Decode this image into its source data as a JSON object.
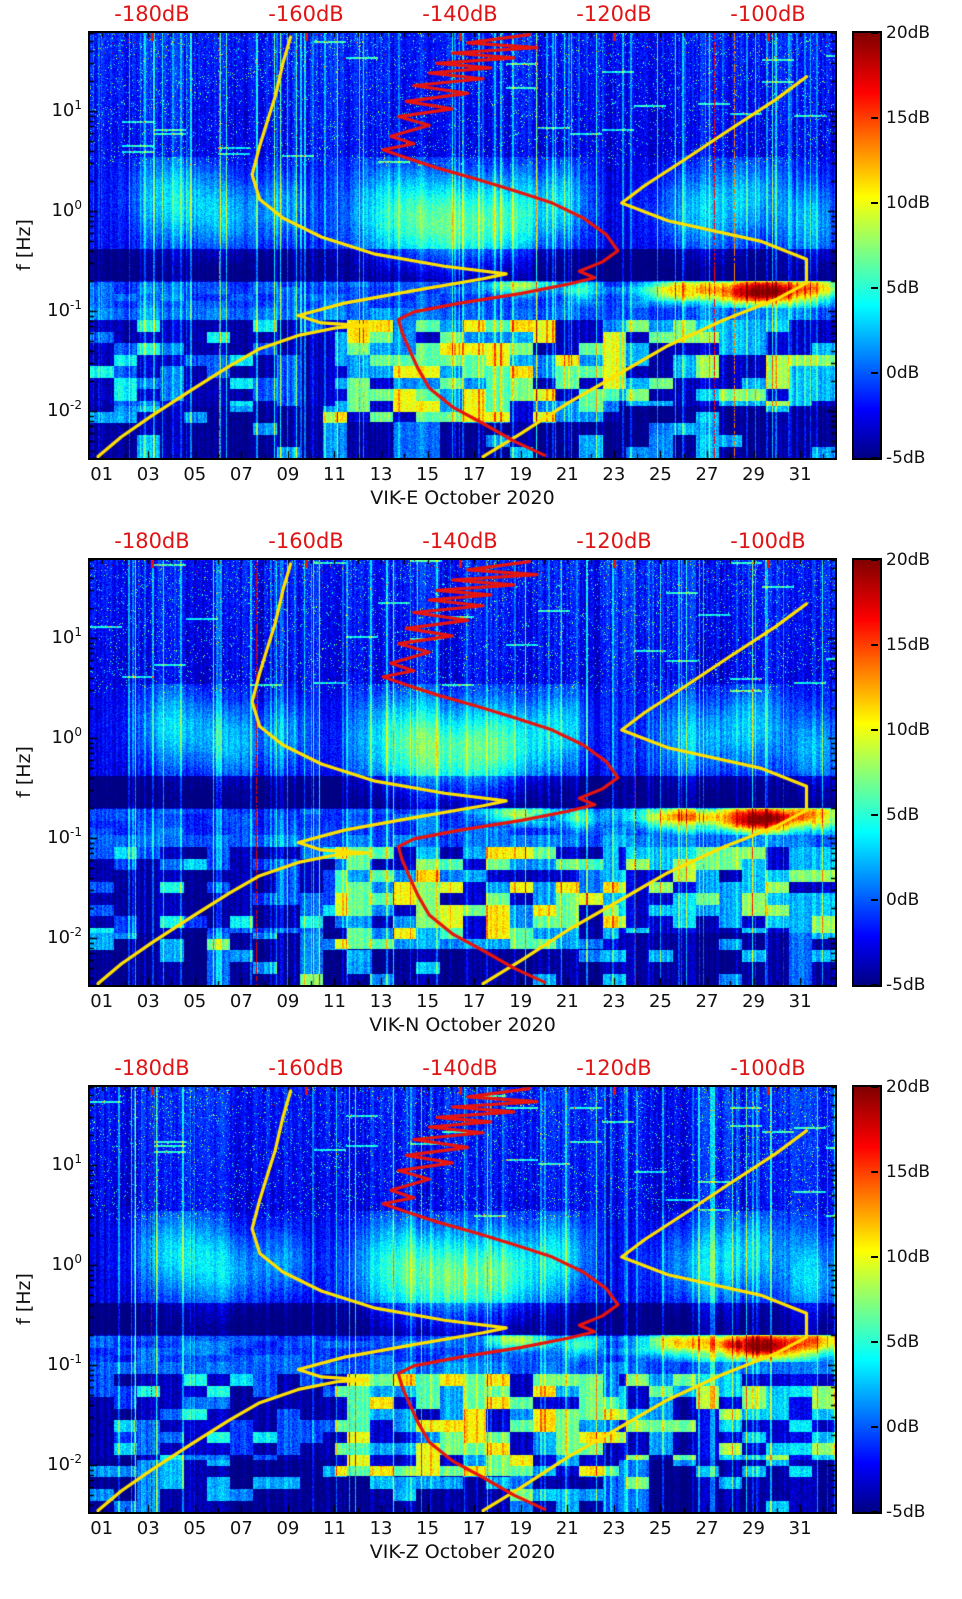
{
  "chart_data": {
    "type": "heatmap",
    "subtype": "spectrogram",
    "colormap": "jet",
    "description": "Three daily power-spectral-density spectrograms (components E, N, Z of station VIK, October 2020). Heatmap value range -5dB to 20dB. Overlaid sideways spectra use the red top axis (-180dB to -100dB): two yellow reference noise-model curves and one red station PSD curve.",
    "panels": [
      {
        "title": "VIK-E October 2020",
        "seed": 11
      },
      {
        "title": "VIK-N October 2020",
        "seed": 47
      },
      {
        "title": "VIK-Z October 2020",
        "seed": 83
      }
    ],
    "ylabel": "f [Hz]",
    "y_ticks": [
      {
        "base": "10",
        "exp": "1",
        "value": 1
      },
      {
        "base": "10",
        "exp": "0",
        "value": 0
      },
      {
        "base": "10",
        "exp": "-1",
        "value": -1
      },
      {
        "base": "10",
        "exp": "-2",
        "value": -2
      }
    ],
    "x_tick_labels": [
      "01",
      "03",
      "05",
      "07",
      "09",
      "11",
      "13",
      "15",
      "17",
      "19",
      "21",
      "23",
      "25",
      "27",
      "29",
      "31"
    ],
    "x_axis": {
      "days_span": 32
    },
    "y_axis": {
      "log10f_top": 1.78,
      "log10f_bottom": -2.47
    },
    "top_axis": {
      "unit": "dB",
      "labels": [
        "-180dB",
        "-160dB",
        "-140dB",
        "-120dB",
        "-100dB"
      ],
      "values": [
        -180,
        -160,
        -140,
        -120,
        -100
      ],
      "db_ref": -180,
      "frac_ref": 0.0832,
      "frac_per_db": 0.010336
    },
    "colorbar": {
      "labels": [
        "20dB",
        "15dB",
        "10dB",
        "5dB",
        "0dB",
        "-5dB"
      ],
      "values": [
        20,
        15,
        10,
        5,
        0,
        -5
      ],
      "min": -5,
      "max": 20
    },
    "curves": [
      {
        "name": "low-noise-model",
        "color": "#ffe100",
        "points": [
          [
            -187,
            0.0035
          ],
          [
            -184,
            0.0055
          ],
          [
            -180,
            0.009
          ],
          [
            -175,
            0.016
          ],
          [
            -170,
            0.028
          ],
          [
            -166,
            0.042
          ],
          [
            -161,
            0.057
          ],
          [
            -156,
            0.068
          ],
          [
            -152,
            0.071
          ],
          [
            -158,
            0.076
          ],
          [
            -161,
            0.09
          ],
          [
            -155,
            0.12
          ],
          [
            -146,
            0.16
          ],
          [
            -137,
            0.21
          ],
          [
            -134,
            0.235
          ],
          [
            -142,
            0.28
          ],
          [
            -151,
            0.37
          ],
          [
            -158,
            0.55
          ],
          [
            -163,
            0.85
          ],
          [
            -166,
            1.3
          ],
          [
            -167,
            2.3
          ],
          [
            -166,
            4.5
          ],
          [
            -165,
            8
          ],
          [
            -164,
            14
          ],
          [
            -163,
            30
          ],
          [
            -162,
            55
          ]
        ]
      },
      {
        "name": "high-noise-model",
        "color": "#ffe100",
        "points": [
          [
            -137,
            0.0035
          ],
          [
            -132,
            0.006
          ],
          [
            -126,
            0.012
          ],
          [
            -120,
            0.022
          ],
          [
            -113,
            0.045
          ],
          [
            -106,
            0.08
          ],
          [
            -99,
            0.13
          ],
          [
            -95,
            0.19
          ],
          [
            -95,
            0.33
          ],
          [
            -101,
            0.5
          ],
          [
            -113,
            0.8
          ],
          [
            -119,
            1.2
          ],
          [
            -116,
            1.8
          ],
          [
            -111,
            3.2
          ],
          [
            -105,
            6.5
          ],
          [
            -99,
            13
          ],
          [
            -95,
            22
          ]
        ]
      },
      {
        "name": "station-psd",
        "color": "#e8150d",
        "points": [
          [
            -131,
            58
          ],
          [
            -139,
            48
          ],
          [
            -130,
            43
          ],
          [
            -141,
            38
          ],
          [
            -133,
            34
          ],
          [
            -143,
            30
          ],
          [
            -136,
            27
          ],
          [
            -144,
            24
          ],
          [
            -137,
            21
          ],
          [
            -146,
            18
          ],
          [
            -139,
            15
          ],
          [
            -147,
            12.5
          ],
          [
            -141,
            10.5
          ],
          [
            -148,
            8.8
          ],
          [
            -144,
            7.2
          ],
          [
            -149,
            5.6
          ],
          [
            -146,
            4.7
          ],
          [
            -150,
            4.1
          ],
          [
            -147,
            3.4
          ],
          [
            -143,
            2.7
          ],
          [
            -138,
            2.1
          ],
          [
            -133,
            1.6
          ],
          [
            -128,
            1.2
          ],
          [
            -124,
            0.85
          ],
          [
            -121,
            0.58
          ],
          [
            -119.5,
            0.4
          ],
          [
            -121.5,
            0.31
          ],
          [
            -124.5,
            0.25
          ],
          [
            -122.5,
            0.215
          ],
          [
            -126,
            0.185
          ],
          [
            -132,
            0.15
          ],
          [
            -140,
            0.12
          ],
          [
            -146,
            0.098
          ],
          [
            -148,
            0.082
          ],
          [
            -147.5,
            0.06
          ],
          [
            -146.5,
            0.04
          ],
          [
            -145.5,
            0.027
          ],
          [
            -144,
            0.017
          ],
          [
            -141,
            0.011
          ],
          [
            -137,
            0.0075
          ],
          [
            -133,
            0.005
          ],
          [
            -129,
            0.0036
          ]
        ]
      }
    ],
    "texture": {
      "clouds": [
        {
          "d": 3.6,
          "f": 0.12,
          "a": 5.5,
          "sd": 1.3,
          "sf": 0.3
        },
        {
          "d": 6.0,
          "f": -0.05,
          "a": 4.5,
          "sd": 1.0,
          "sf": 0.28
        },
        {
          "d": 8.3,
          "f": 0.05,
          "a": 4.0,
          "sd": 0.8,
          "sf": 0.25
        },
        {
          "d": 13.0,
          "f": 0.0,
          "a": 6.0,
          "sd": 1.5,
          "sf": 0.35
        },
        {
          "d": 15.5,
          "f": -0.15,
          "a": 7.0,
          "sd": 1.6,
          "sf": 0.35
        },
        {
          "d": 18.0,
          "f": -0.05,
          "a": 6.0,
          "sd": 1.2,
          "sf": 0.32
        },
        {
          "d": 20.3,
          "f": 0.1,
          "a": 5.0,
          "sd": 0.9,
          "sf": 0.3
        },
        {
          "d": 26.0,
          "f": 0.0,
          "a": 5.0,
          "sd": 1.4,
          "sf": 0.3
        },
        {
          "d": 28.5,
          "f": 0.15,
          "a": 4.5,
          "sd": 1.0,
          "sf": 0.3
        },
        {
          "d": 31.0,
          "f": -0.1,
          "a": 5.0,
          "sd": 0.8,
          "sf": 0.3
        }
      ],
      "hotspots": [
        {
          "d": 28.8,
          "f": -0.8,
          "a": 21,
          "sd": 1.3,
          "sf": 0.1
        },
        {
          "d": 25.3,
          "f": -0.78,
          "a": 12,
          "sd": 1.2,
          "sf": 0.09
        },
        {
          "d": 31.3,
          "f": -0.75,
          "a": 10,
          "sd": 0.8,
          "sf": 0.1
        },
        {
          "d": 18.4,
          "f": -0.74,
          "a": 9,
          "sd": 0.9,
          "sf": 0.07
        },
        {
          "d": 21.1,
          "f": -0.8,
          "a": 6,
          "sd": 0.5,
          "sf": 0.08
        }
      ]
    }
  },
  "colors": {
    "axis_text": "#111111",
    "top_axis_red": "#e01414",
    "curve_yellow": "#ffe100",
    "curve_red": "#e8150d",
    "jet_stops": [
      [
        0,
        0,
        0,
        131
      ],
      [
        0.115,
        0,
        0,
        255
      ],
      [
        0.36,
        0,
        255,
        255
      ],
      [
        0.615,
        255,
        255,
        0
      ],
      [
        0.86,
        255,
        0,
        0
      ],
      [
        1,
        128,
        0,
        0
      ]
    ]
  }
}
